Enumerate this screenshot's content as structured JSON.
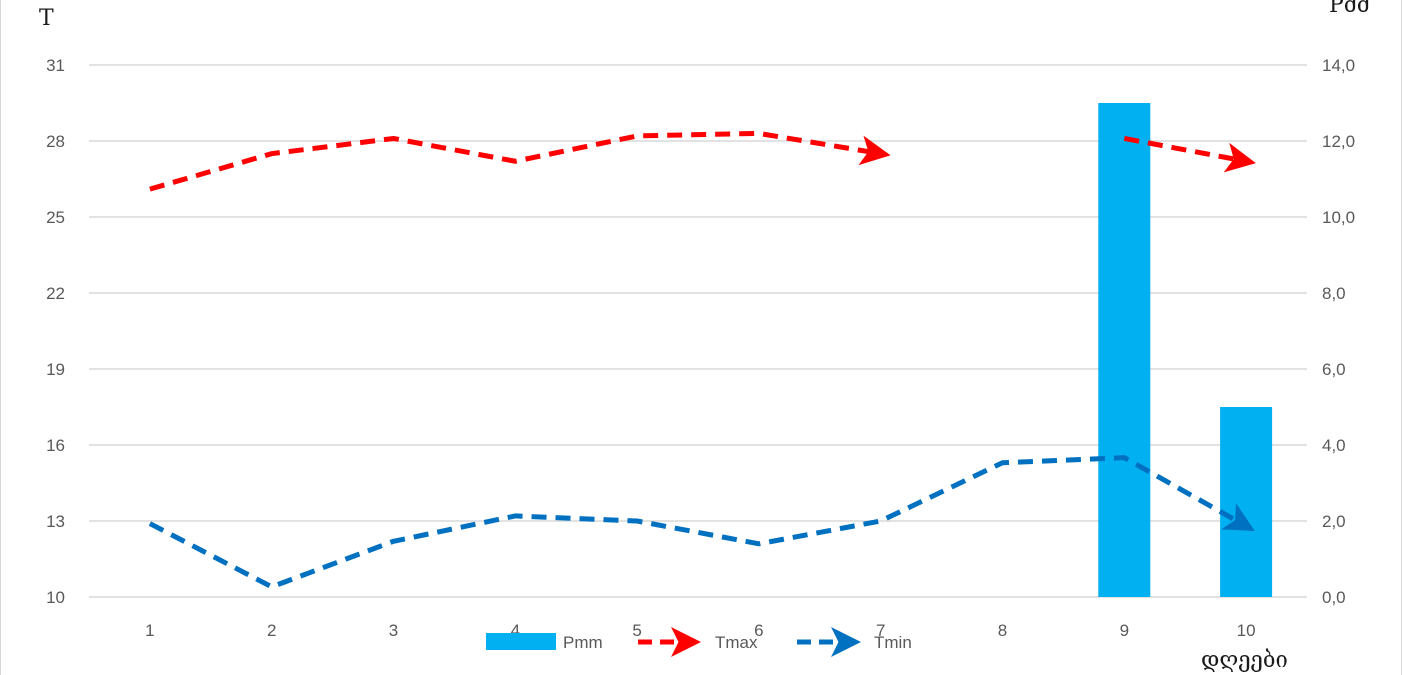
{
  "chart_data": {
    "type": "bar+line",
    "title": "",
    "categories": [
      "1",
      "2",
      "3",
      "4",
      "5",
      "6",
      "7",
      "8",
      "9",
      "10"
    ],
    "xlabel": "დღეები",
    "ylabel_left": "T",
    "ylabel_right": "Pმმ",
    "ylim_left": [
      10,
      31
    ],
    "ylim_right": [
      0,
      14
    ],
    "yticks_left": [
      "10",
      "13",
      "16",
      "19",
      "22",
      "25",
      "28",
      "31"
    ],
    "yticks_right": [
      "0,0",
      "2,0",
      "4,0",
      "6,0",
      "8,0",
      "10,0",
      "12,0",
      "14,0"
    ],
    "grid": true,
    "legend_position": "bottom",
    "series": [
      {
        "name": "Pmm",
        "kind": "bar",
        "axis": "right",
        "color": "#00b0f0",
        "values": [
          0,
          0,
          0,
          0,
          0,
          0,
          0,
          0,
          13.0,
          5.0
        ]
      },
      {
        "name": "Tmax",
        "kind": "line",
        "axis": "left",
        "color": "#ff0000",
        "style": "dashed-arrow",
        "segments": [
          {
            "x": [
              1,
              2,
              3,
              4,
              5,
              6,
              7
            ],
            "values": [
              26.1,
              27.5,
              28.1,
              27.2,
              28.2,
              28.3,
              27.5
            ]
          },
          {
            "x": [
              9,
              10
            ],
            "values": [
              28.1,
              27.2
            ]
          }
        ]
      },
      {
        "name": "Tmin",
        "kind": "line",
        "axis": "left",
        "color": "#0070c0",
        "style": "dashed-arrow",
        "segments": [
          {
            "x": [
              1,
              2,
              3,
              4,
              5,
              6,
              7,
              8,
              9,
              10
            ],
            "values": [
              12.9,
              10.4,
              12.2,
              13.2,
              13.0,
              12.1,
              13.0,
              15.3,
              15.5,
              12.8
            ]
          }
        ]
      }
    ]
  }
}
